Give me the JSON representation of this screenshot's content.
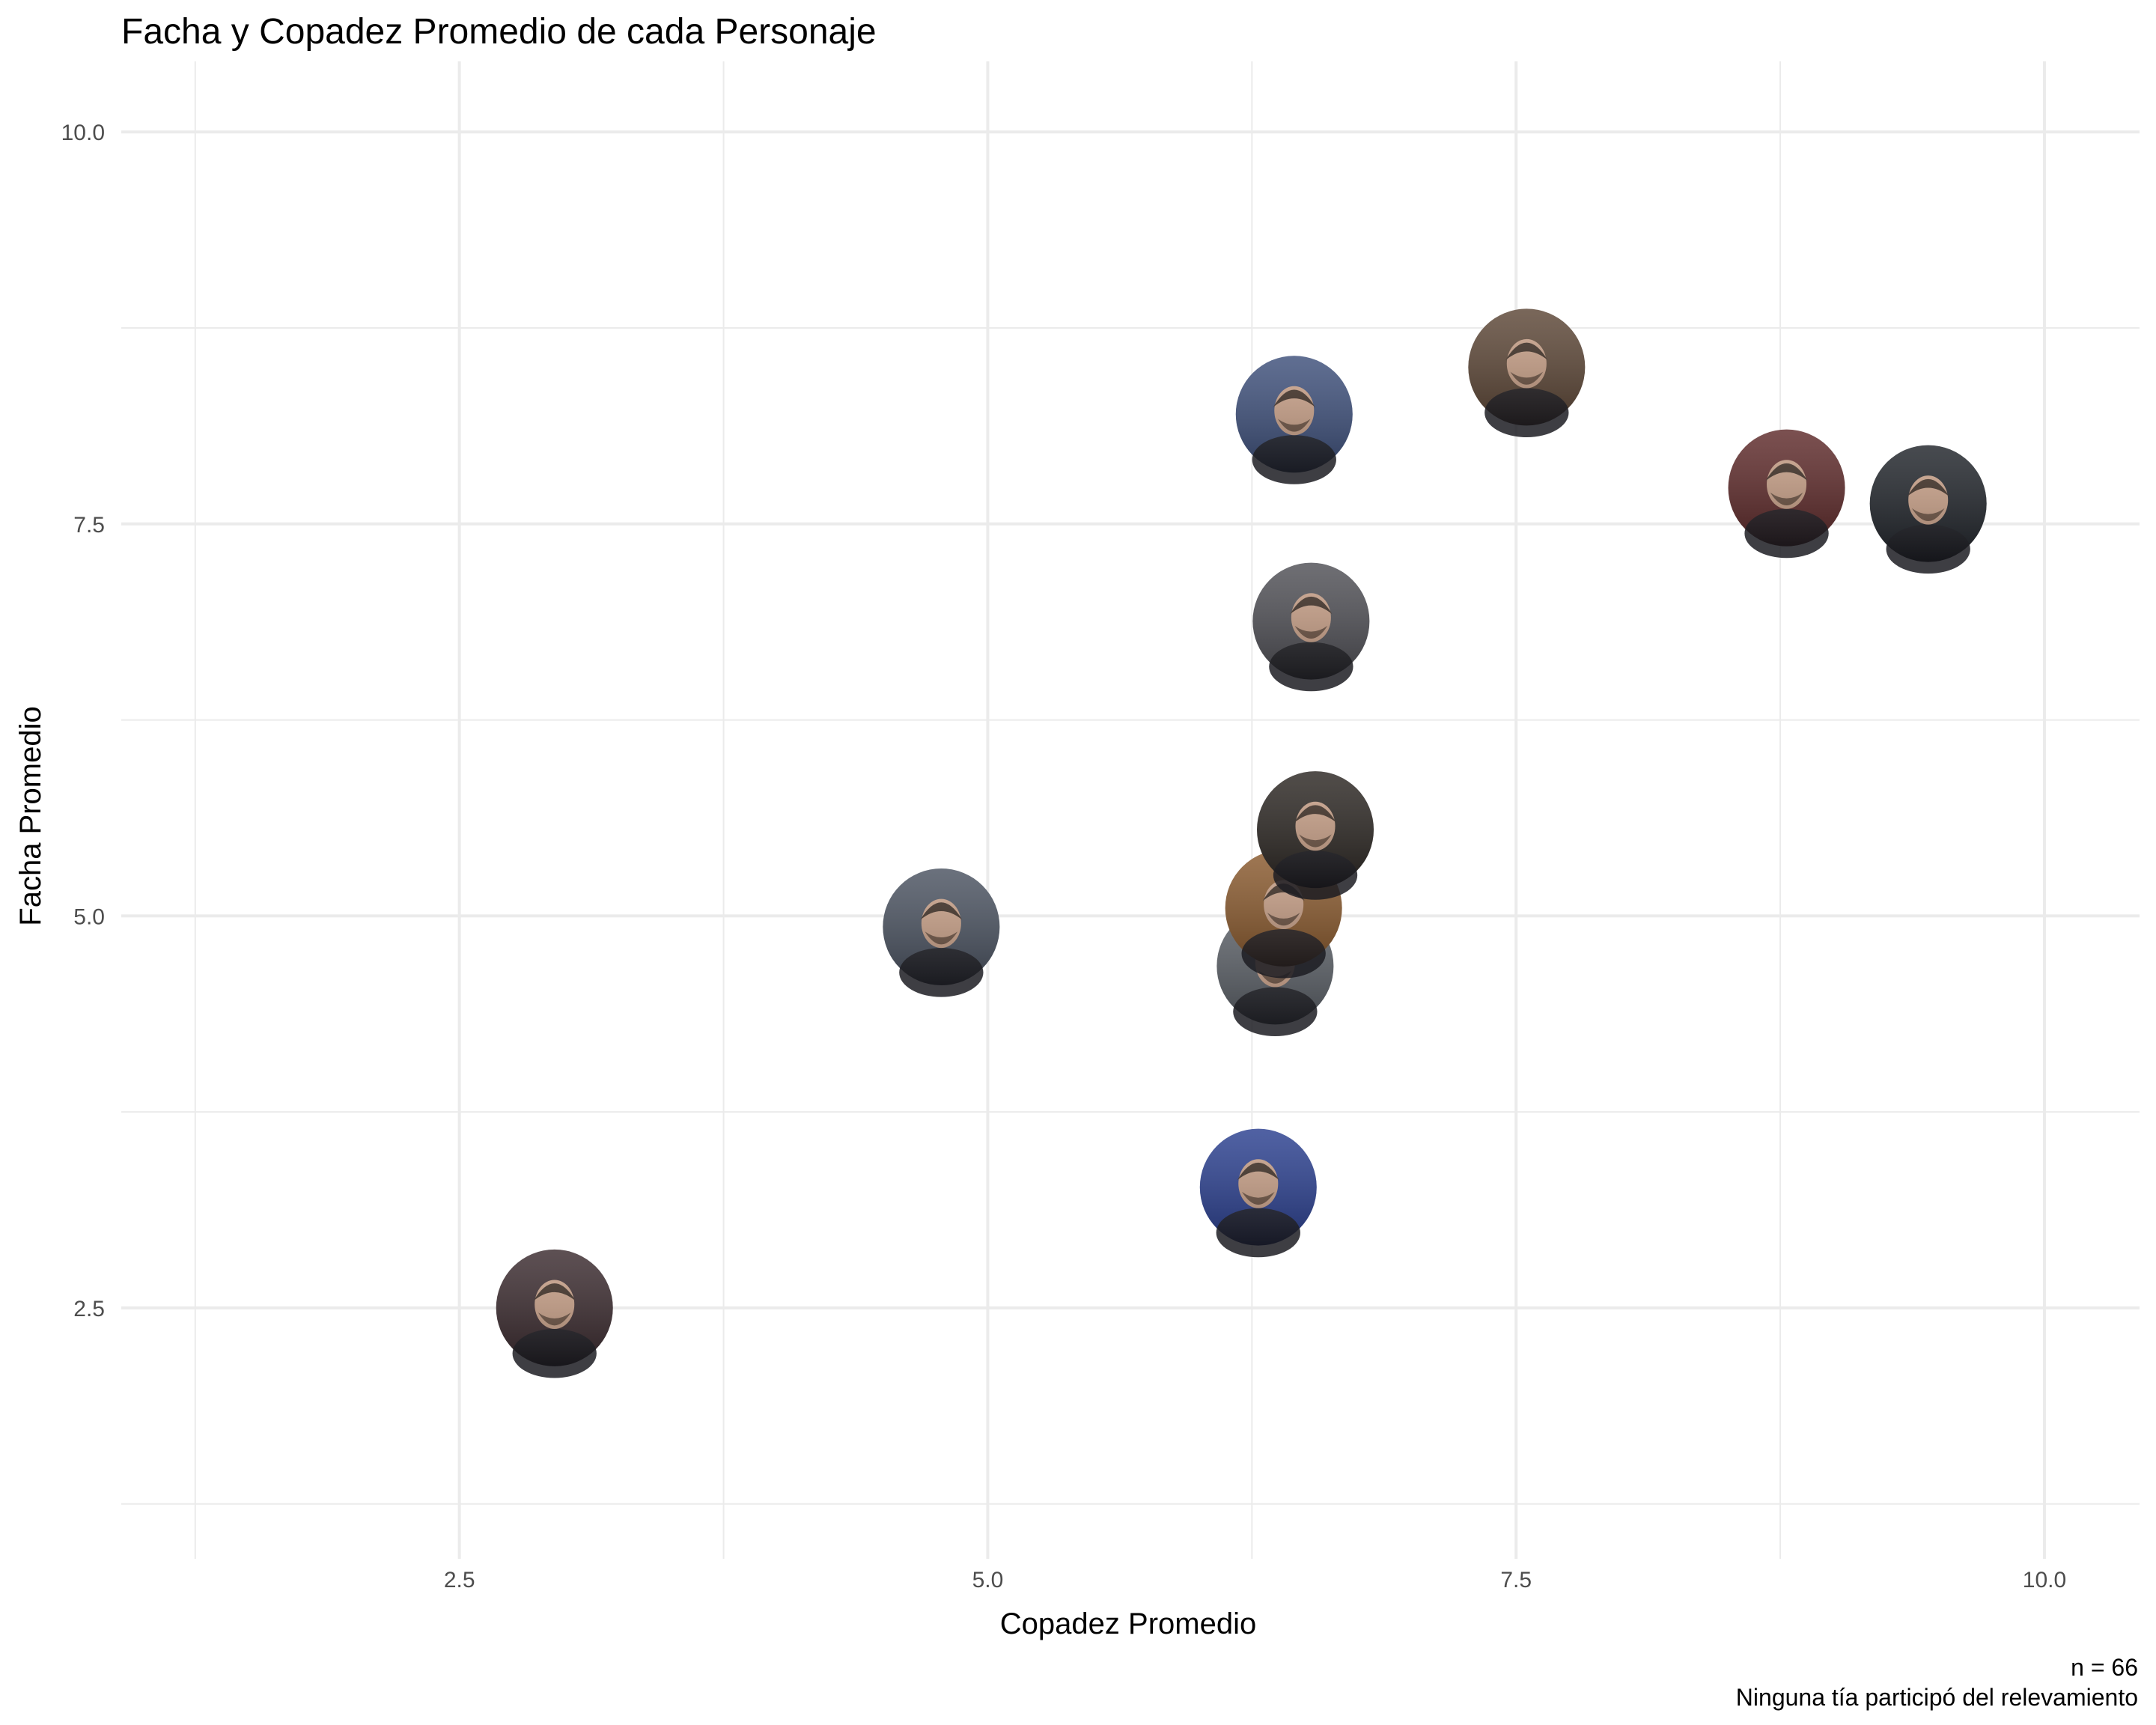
{
  "chart_data": {
    "type": "scatter",
    "title": "Facha y Copadez Promedio de cada Personaje",
    "xlabel": "Copadez Promedio",
    "ylabel": "Facha Promedio",
    "xlim": [
      0.9,
      10.45
    ],
    "ylim": [
      0.9,
      10.45
    ],
    "x_ticks": [
      2.5,
      5.0,
      7.5,
      10.0
    ],
    "x_tick_labels": [
      "2.5",
      "5.0",
      "7.5",
      "10.0"
    ],
    "y_ticks": [
      2.5,
      5.0,
      7.5,
      10.0
    ],
    "y_tick_labels": [
      "2.5",
      "5.0",
      "7.5",
      "10.0"
    ],
    "x_minor": [
      1.25,
      3.75,
      6.25,
      8.75
    ],
    "y_minor": [
      1.25,
      3.75,
      6.25,
      8.75
    ],
    "grid": true,
    "marker": "circular-portrait",
    "points": [
      {
        "x": 2.95,
        "y": 2.5,
        "color": "#3a2a2e"
      },
      {
        "x": 4.78,
        "y": 4.93,
        "color": "#4a5260"
      },
      {
        "x": 6.28,
        "y": 3.27,
        "color": "#2a3f8f"
      },
      {
        "x": 6.36,
        "y": 4.68,
        "color": "#5a5f66"
      },
      {
        "x": 6.4,
        "y": 5.05,
        "color": "#8a5a2e"
      },
      {
        "x": 6.55,
        "y": 5.55,
        "color": "#2b2622"
      },
      {
        "x": 6.53,
        "y": 6.88,
        "color": "#4f4f55"
      },
      {
        "x": 6.45,
        "y": 8.2,
        "color": "#3d4f7a"
      },
      {
        "x": 7.55,
        "y": 8.5,
        "color": "#5c4636"
      },
      {
        "x": 8.78,
        "y": 7.73,
        "color": "#5e2a2a"
      },
      {
        "x": 9.45,
        "y": 7.63,
        "color": "#1f2329"
      }
    ]
  },
  "caption": {
    "line1": "n = 66",
    "line2": "Ninguna tía participó del relevamiento"
  }
}
